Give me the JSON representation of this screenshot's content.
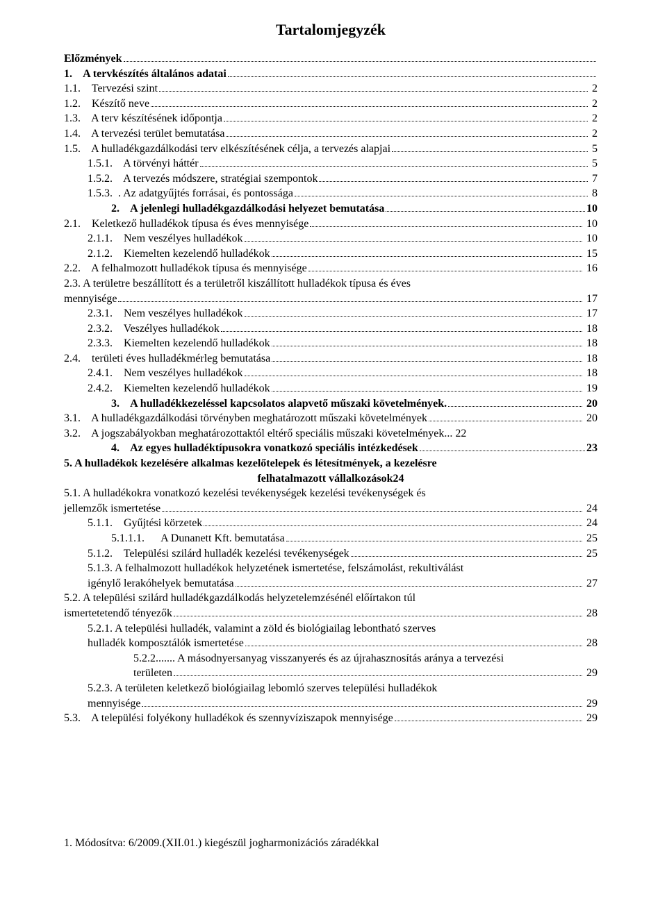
{
  "title": "Tartalomjegyzék",
  "lines": [
    {
      "kind": "dotline",
      "indent": 0,
      "bold": true,
      "center": true,
      "label": "Előzmények",
      "page": "",
      "dots": true
    },
    {
      "kind": "dotline",
      "indent": 0,
      "bold": true,
      "center": true,
      "label": "1.    A tervkészítés általános adatai",
      "page": "",
      "dots": true
    },
    {
      "kind": "dotline",
      "indent": 0,
      "bold": false,
      "label": "1.1.    Tervezési szint",
      "page": " 2",
      "dots": true
    },
    {
      "kind": "dotline",
      "indent": 0,
      "bold": false,
      "label": "1.2.    Készítő neve",
      "page": " 2",
      "dots": true
    },
    {
      "kind": "dotline",
      "indent": 0,
      "bold": false,
      "label": "1.3.    A terv készítésének időpontja",
      "page": " 2",
      "dots": true
    },
    {
      "kind": "dotline",
      "indent": 0,
      "bold": false,
      "label": "1.4.    A tervezési terület bemutatása",
      "page": " 2",
      "dots": true
    },
    {
      "kind": "dotline",
      "indent": 0,
      "bold": false,
      "label": "1.5.    A hulladékgazdálkodási terv elkészítésének célja, a tervezés alapjai",
      "page": " 5",
      "dots": true
    },
    {
      "kind": "dotline",
      "indent": 1,
      "bold": false,
      "label": "1.5.1.    A törvényi háttér",
      "page": " 5",
      "dots": true
    },
    {
      "kind": "dotline",
      "indent": 1,
      "bold": false,
      "label": "1.5.2.    A tervezés módszere, stratégiai szempontok",
      "page": " 7",
      "dots": true
    },
    {
      "kind": "dotline",
      "indent": 1,
      "bold": false,
      "label": "1.5.3.  . Az adatgyűjtés forrásai, és pontossága",
      "page": " 8",
      "dots": true
    },
    {
      "kind": "dotline",
      "indent": 2,
      "bold": true,
      "label": "2.    A jelenlegi hulladékgazdálkodási helyezet bemutatása",
      "page": "10",
      "dots": true
    },
    {
      "kind": "dotline",
      "indent": 0,
      "bold": false,
      "label": "2.1.    Keletkező hulladékok típusa és éves mennyisége",
      "page": " 10",
      "dots": true
    },
    {
      "kind": "dotline",
      "indent": 1,
      "bold": false,
      "label": "2.1.1.    Nem veszélyes hulladékok",
      "page": " 10",
      "dots": true
    },
    {
      "kind": "dotline",
      "indent": 1,
      "bold": false,
      "label": "2.1.2.    Kiemelten kezelendő hulladékok",
      "page": " 15",
      "dots": true
    },
    {
      "kind": "dotline",
      "indent": 0,
      "bold": false,
      "label": "2.2.    A felhalmozott hulladékok típusa és mennyisége",
      "page": " 16",
      "dots": true
    },
    {
      "kind": "wrapstart",
      "indent": 0,
      "bold": false,
      "label": "2.3.    A területre beszállított és a területről kiszállított hulladékok típusa és éves"
    },
    {
      "kind": "dotline",
      "indent": 0,
      "bold": false,
      "label": "mennyisége",
      "page": " 17",
      "dots": true
    },
    {
      "kind": "dotline",
      "indent": 1,
      "bold": false,
      "label": "2.3.1.    Nem veszélyes hulladékok",
      "page": " 17",
      "dots": true
    },
    {
      "kind": "dotline",
      "indent": 1,
      "bold": false,
      "label": "2.3.2.    Veszélyes hulladékok",
      "page": " 18",
      "dots": true
    },
    {
      "kind": "dotline",
      "indent": 1,
      "bold": false,
      "label": "2.3.3.    Kiemelten kezelendő hulladékok",
      "page": " 18",
      "dots": true
    },
    {
      "kind": "dotline",
      "indent": 0,
      "bold": false,
      "label": "2.4.    területi éves hulladékmérleg bemutatása",
      "page": " 18",
      "dots": true
    },
    {
      "kind": "dotline",
      "indent": 1,
      "bold": false,
      "label": "2.4.1.    Nem veszélyes hulladékok",
      "page": " 18",
      "dots": true
    },
    {
      "kind": "dotline",
      "indent": 1,
      "bold": false,
      "label": "2.4.2.    Kiemelten kezelendő hulladékok",
      "page": " 19",
      "dots": true
    },
    {
      "kind": "dotline",
      "indent": 2,
      "bold": true,
      "label": "3.    A hulladékkezeléssel kapcsolatos alapvető műszaki követelmények.",
      "page": " 20",
      "dots": true
    },
    {
      "kind": "dotline",
      "indent": 0,
      "bold": false,
      "label": "3.1.    A hulladékgazdálkodási törvényben meghatározott műszaki követelmények",
      "page": " 20",
      "dots": true
    },
    {
      "kind": "dotline",
      "indent": 0,
      "bold": false,
      "label": "3.2.    A jogszabályokban meghatározottaktól eltérő speciális műszaki követelmények... 22",
      "page": "",
      "dots": false
    },
    {
      "kind": "dotline",
      "indent": 2,
      "bold": true,
      "label": "4.    Az egyes hulladéktípusokra vonatkozó speciális intézkedések",
      "page": "23",
      "dots": true
    },
    {
      "kind": "wrapstart",
      "indent": 0,
      "bold": true,
      "label": "5.          A hulladékok kezelésére alkalmas kezelőtelepek és létesítmények, a kezelésre"
    },
    {
      "kind": "plain",
      "indent": 0,
      "bold": true,
      "center": true,
      "label": "felhatalmazott vállalkozások24"
    },
    {
      "kind": "wrapstart",
      "indent": 0,
      "bold": false,
      "label": "5.1.    A hulladékokra vonatkozó kezelési tevékenységek kezelési tevékenységek és"
    },
    {
      "kind": "dotline",
      "indent": 0,
      "bold": false,
      "label": "jellemzők ismertetése",
      "page": " 24",
      "dots": true
    },
    {
      "kind": "dotline",
      "indent": 1,
      "bold": false,
      "label": "5.1.1.    Gyűjtési körzetek",
      "page": " 24",
      "dots": true
    },
    {
      "kind": "dotline",
      "indent": 2,
      "bold": false,
      "label": "5.1.1.1.      A Dunanett Kft. bemutatása",
      "page": " 25",
      "dots": true
    },
    {
      "kind": "dotline",
      "indent": 1,
      "bold": false,
      "label": "5.1.2.    Települési szilárd hulladék kezelési tevékenységek",
      "page": " 25",
      "dots": true
    },
    {
      "kind": "wrapstart",
      "indent": 1,
      "bold": false,
      "label": "5.1.3.    A felhalmozott hulladékok helyzetének ismertetése, felszámolást, rekultiválást"
    },
    {
      "kind": "dotline",
      "indent": 1,
      "bold": false,
      "label": "igénylő lerakóhelyek bemutatása",
      "page": " 27",
      "dots": true
    },
    {
      "kind": "wrapstart",
      "indent": 0,
      "bold": false,
      "label": "5.2.    A települési szilárd hulladékgazdálkodás helyzetelemzésénél előírtakon túl"
    },
    {
      "kind": "dotline",
      "indent": 0,
      "bold": false,
      "label": "ismertetetendő tényezők",
      "page": " 28",
      "dots": true
    },
    {
      "kind": "wrapstart",
      "indent": 1,
      "bold": false,
      "label": "5.2.1.    A települési hulladék, valamint a zöld és biológiailag lebontható szerves"
    },
    {
      "kind": "dotline",
      "indent": 1,
      "bold": false,
      "label": "hulladék komposztálók ismertetése",
      "page": " 28",
      "dots": true
    },
    {
      "kind": "wrapstart",
      "indent": 3,
      "bold": false,
      "label": "5.2.2....... A másodnyersanyag visszanyerés és az újrahasznosítás aránya a tervezési"
    },
    {
      "kind": "dotline",
      "indent": 3,
      "bold": false,
      "label": "területen",
      "page": " 29",
      "dots": true
    },
    {
      "kind": "wrapstart",
      "indent": 1,
      "bold": false,
      "label": "5.2.3.    A területen keletkező biológiailag lebomló szerves települési hulladékok"
    },
    {
      "kind": "dotline",
      "indent": 1,
      "bold": false,
      "label": "mennyisége",
      "page": " 29",
      "dots": true
    },
    {
      "kind": "dotline",
      "indent": 0,
      "bold": false,
      "label": "5.3.    A települési folyékony hulladékok és szennyvíziszapok mennyisége",
      "page": " 29",
      "dots": true
    }
  ],
  "footer": "1. Módosítva: 6/2009.(XII.01.) kiegészül jogharmonizációs záradékkal"
}
